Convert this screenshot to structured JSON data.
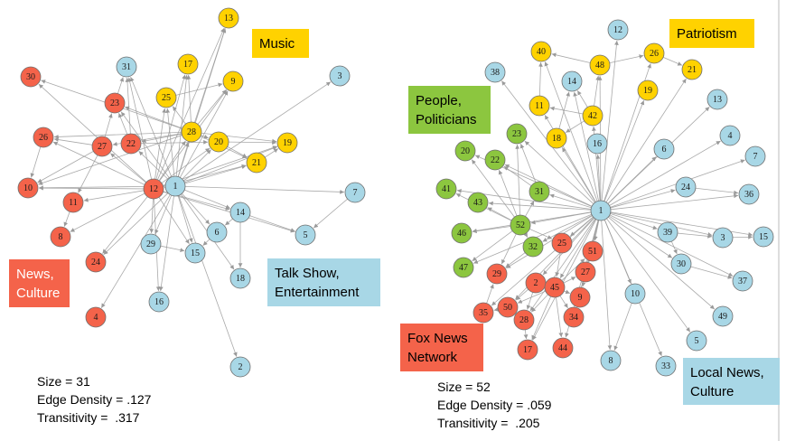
{
  "colors": {
    "blue": "#a8d7e6",
    "yellow": "#ffd200",
    "red": "#f4634a",
    "green": "#8cc63f",
    "edge": "#9a9a9a"
  },
  "left_network": {
    "stats": [
      "Size = 31",
      "Edge Density = .127",
      "Transitivity =  .317"
    ],
    "labels": [
      {
        "text": [
          "Music"
        ],
        "color": "yellow",
        "text_color": "dark"
      },
      {
        "text": [
          "News,",
          "Culture"
        ],
        "color": "red",
        "text_color": "white"
      },
      {
        "text": [
          "Talk Show,",
          "Entertainment"
        ],
        "color": "blue",
        "text_color": "dark"
      }
    ],
    "nodes": [
      {
        "id": "1",
        "group": "blue"
      },
      {
        "id": "2",
        "group": "blue"
      },
      {
        "id": "3",
        "group": "blue"
      },
      {
        "id": "4",
        "group": "red"
      },
      {
        "id": "5",
        "group": "blue"
      },
      {
        "id": "6",
        "group": "blue"
      },
      {
        "id": "7",
        "group": "blue"
      },
      {
        "id": "8",
        "group": "red"
      },
      {
        "id": "9",
        "group": "yellow"
      },
      {
        "id": "10",
        "group": "red"
      },
      {
        "id": "11",
        "group": "red"
      },
      {
        "id": "12",
        "group": "red"
      },
      {
        "id": "13",
        "group": "yellow"
      },
      {
        "id": "14",
        "group": "blue"
      },
      {
        "id": "15",
        "group": "blue"
      },
      {
        "id": "16",
        "group": "blue"
      },
      {
        "id": "17",
        "group": "yellow"
      },
      {
        "id": "18",
        "group": "blue"
      },
      {
        "id": "19",
        "group": "yellow"
      },
      {
        "id": "20",
        "group": "yellow"
      },
      {
        "id": "21",
        "group": "yellow"
      },
      {
        "id": "22",
        "group": "red"
      },
      {
        "id": "23",
        "group": "red"
      },
      {
        "id": "24",
        "group": "red"
      },
      {
        "id": "25",
        "group": "yellow"
      },
      {
        "id": "26",
        "group": "red"
      },
      {
        "id": "27",
        "group": "red"
      },
      {
        "id": "28",
        "group": "yellow"
      },
      {
        "id": "29",
        "group": "blue"
      },
      {
        "id": "30",
        "group": "red"
      },
      {
        "id": "31",
        "group": "blue"
      }
    ]
  },
  "right_network": {
    "stats": [
      "Size = 52",
      "Edge Density = .059",
      "Transitivity =  .205"
    ],
    "labels": [
      {
        "text": [
          "Patriotism"
        ],
        "color": "yellow",
        "text_color": "dark"
      },
      {
        "text": [
          "People,",
          "Politicians"
        ],
        "color": "green",
        "text_color": "dark"
      },
      {
        "text": [
          "Fox News",
          "Network"
        ],
        "color": "red",
        "text_color": "dark"
      },
      {
        "text": [
          "Local News,",
          "Culture"
        ],
        "color": "blue",
        "text_color": "dark"
      }
    ],
    "nodes": [
      {
        "id": "1",
        "group": "blue"
      },
      {
        "id": "2",
        "group": "red"
      },
      {
        "id": "3",
        "group": "blue"
      },
      {
        "id": "4",
        "group": "blue"
      },
      {
        "id": "5",
        "group": "blue"
      },
      {
        "id": "6",
        "group": "blue"
      },
      {
        "id": "7",
        "group": "blue"
      },
      {
        "id": "8",
        "group": "blue"
      },
      {
        "id": "9",
        "group": "red"
      },
      {
        "id": "10",
        "group": "blue"
      },
      {
        "id": "11",
        "group": "yellow"
      },
      {
        "id": "12",
        "group": "blue"
      },
      {
        "id": "13",
        "group": "blue"
      },
      {
        "id": "14",
        "group": "blue"
      },
      {
        "id": "15",
        "group": "blue"
      },
      {
        "id": "16",
        "group": "blue"
      },
      {
        "id": "17",
        "group": "red"
      },
      {
        "id": "18",
        "group": "yellow"
      },
      {
        "id": "19",
        "group": "yellow"
      },
      {
        "id": "20",
        "group": "green"
      },
      {
        "id": "21",
        "group": "yellow"
      },
      {
        "id": "22",
        "group": "green"
      },
      {
        "id": "23",
        "group": "green"
      },
      {
        "id": "24",
        "group": "blue"
      },
      {
        "id": "25",
        "group": "red"
      },
      {
        "id": "26",
        "group": "yellow"
      },
      {
        "id": "27",
        "group": "red"
      },
      {
        "id": "28",
        "group": "red"
      },
      {
        "id": "29",
        "group": "red"
      },
      {
        "id": "30",
        "group": "blue"
      },
      {
        "id": "31",
        "group": "green"
      },
      {
        "id": "32",
        "group": "green"
      },
      {
        "id": "33",
        "group": "blue"
      },
      {
        "id": "34",
        "group": "red"
      },
      {
        "id": "35",
        "group": "red"
      },
      {
        "id": "36",
        "group": "blue"
      },
      {
        "id": "37",
        "group": "blue"
      },
      {
        "id": "38",
        "group": "blue"
      },
      {
        "id": "39",
        "group": "blue"
      },
      {
        "id": "40",
        "group": "yellow"
      },
      {
        "id": "41",
        "group": "green"
      },
      {
        "id": "42",
        "group": "yellow"
      },
      {
        "id": "43",
        "group": "green"
      },
      {
        "id": "44",
        "group": "red"
      },
      {
        "id": "45",
        "group": "red"
      },
      {
        "id": "46",
        "group": "green"
      },
      {
        "id": "47",
        "group": "green"
      },
      {
        "id": "48",
        "group": "yellow"
      },
      {
        "id": "49",
        "group": "blue"
      },
      {
        "id": "50",
        "group": "red"
      },
      {
        "id": "51",
        "group": "red"
      },
      {
        "id": "52",
        "group": "green"
      }
    ]
  }
}
